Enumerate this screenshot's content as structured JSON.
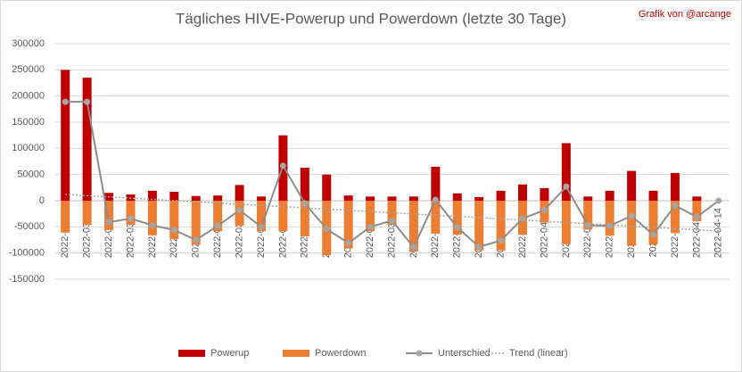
{
  "chart_data": {
    "type": "bar-line",
    "title": "Tägliches HIVE-Powerup und Powerdown (letzte 30 Tage)",
    "annotation": "Grafik von @arcange",
    "categories": [
      "2022-03-15",
      "2022-03-16",
      "2022-03-17",
      "2022-03-18",
      "2022-03-19",
      "2022-03-20",
      "2022-03-21",
      "2022-03-22",
      "2022-03-23",
      "2022-03-24",
      "2022-03-25",
      "2022-03-26",
      "2022-03-27",
      "2022-03-28",
      "2022-03-29",
      "2022-03-30",
      "2022-03-31",
      "2022-04-01",
      "2022-04-02",
      "2022-04-03",
      "2022-04-04",
      "2022-04-05",
      "2022-04-06",
      "2022-04-07",
      "2022-04-08",
      "2022-04-09",
      "2022-04-10",
      "2022-04-11",
      "2022-04-12",
      "2022-04-13",
      "2022-04-14"
    ],
    "series": [
      {
        "name": "Powerup",
        "kind": "bar",
        "color": "#c00000",
        "values": [
          250000,
          235000,
          15000,
          12000,
          19000,
          17000,
          9000,
          10000,
          30000,
          8000,
          125000,
          63000,
          50000,
          10000,
          8000,
          8000,
          8000,
          65000,
          14000,
          7000,
          19000,
          31000,
          24000,
          110000,
          8000,
          19000,
          57000,
          19000,
          53000,
          8000,
          0
        ]
      },
      {
        "name": "Powerdown",
        "kind": "bar",
        "color": "#ed7d31",
        "values": [
          -61000,
          -46000,
          -56000,
          -46000,
          -66000,
          -73000,
          -84000,
          -58000,
          -48000,
          -58000,
          -58000,
          -68000,
          -104000,
          -91000,
          -58000,
          -46000,
          -97000,
          -63000,
          -65000,
          -95000,
          -95000,
          -65000,
          -42000,
          -83000,
          -55000,
          -67000,
          -86000,
          -84000,
          -62000,
          -39000,
          0
        ]
      },
      {
        "name": "Unterschied",
        "kind": "line",
        "color": "#8c8c8c",
        "values": [
          189000,
          189000,
          -41000,
          -34000,
          -47000,
          -56000,
          -75000,
          -48000,
          -18000,
          -50000,
          67000,
          -5000,
          -54000,
          -81000,
          -50000,
          -38000,
          -89000,
          2000,
          -51000,
          -88000,
          -76000,
          -34000,
          -18000,
          27000,
          -47000,
          -48000,
          -29000,
          -65000,
          -9000,
          -31000,
          0
        ]
      }
    ],
    "trend": {
      "name": "Trend (linear)",
      "color": "#a5a5a5",
      "values": [
        12000,
        -58000
      ]
    },
    "ylim": [
      -150000,
      300000
    ],
    "yticks": [
      -150000,
      -100000,
      -50000,
      0,
      50000,
      100000,
      150000,
      200000,
      250000,
      300000
    ],
    "grid": true
  }
}
